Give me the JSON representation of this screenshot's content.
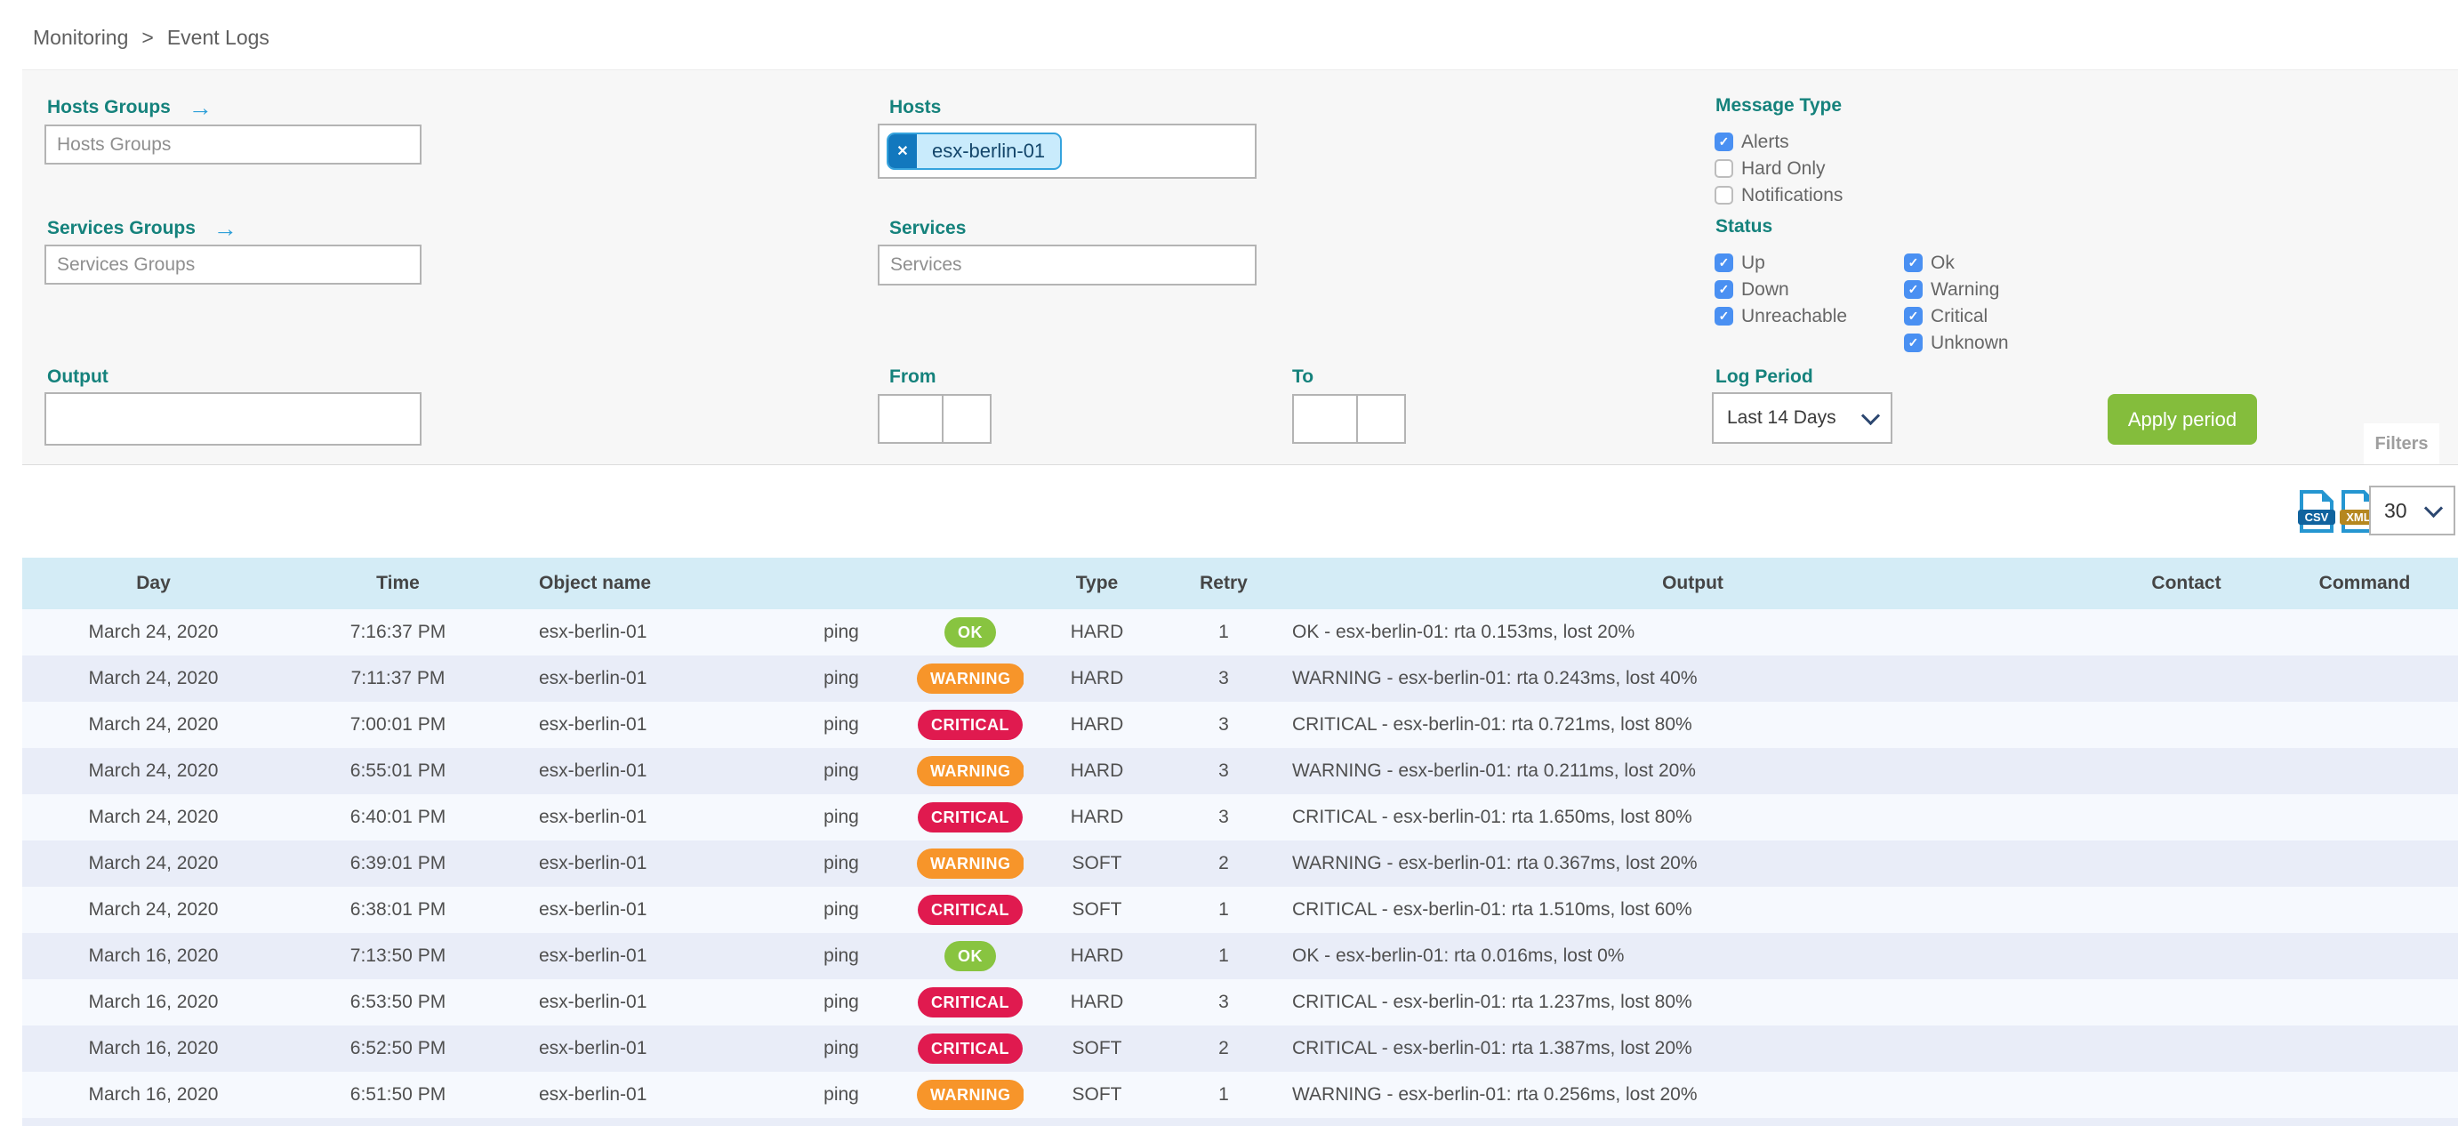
{
  "breadcrumb": {
    "section": "Monitoring",
    "separator": ">",
    "page": "Event Logs"
  },
  "filters": {
    "hosts_groups": {
      "label": "Hosts Groups",
      "placeholder": "Hosts Groups"
    },
    "services_groups": {
      "label": "Services Groups",
      "placeholder": "Services Groups"
    },
    "hosts": {
      "label": "Hosts",
      "chips": [
        "esx-berlin-01"
      ],
      "remove_icon": "✕"
    },
    "services": {
      "label": "Services",
      "placeholder": "Services"
    },
    "output": {
      "label": "Output",
      "value": ""
    },
    "from": {
      "label": "From",
      "date": "",
      "time": ""
    },
    "to": {
      "label": "To",
      "date": "",
      "time": ""
    },
    "message_type": {
      "label": "Message Type",
      "options": [
        {
          "label": "Alerts",
          "checked": true
        },
        {
          "label": "Hard Only",
          "checked": false
        },
        {
          "label": "Notifications",
          "checked": false
        }
      ]
    },
    "status": {
      "label": "Status",
      "col1": [
        {
          "label": "Up",
          "checked": true
        },
        {
          "label": "Down",
          "checked": true
        },
        {
          "label": "Unreachable",
          "checked": true
        }
      ],
      "col2": [
        {
          "label": "Ok",
          "checked": true
        },
        {
          "label": "Warning",
          "checked": true
        },
        {
          "label": "Critical",
          "checked": true
        },
        {
          "label": "Unknown",
          "checked": true
        }
      ]
    },
    "log_period": {
      "label": "Log Period",
      "selected": "Last 14 Days"
    },
    "apply_label": "Apply period",
    "filters_tab": "Filters"
  },
  "toolbar": {
    "csv_label": "CSV",
    "xml_label": "XML",
    "page_size": "30"
  },
  "colors": {
    "ok": "#88c440",
    "warning": "#f7952a",
    "critical": "#e01a4f",
    "accent_teal": "#15827c",
    "checkbox_blue": "#4a90f2",
    "apply_green": "#84bd3c"
  },
  "table": {
    "columns": [
      {
        "key": "day",
        "label": "Day"
      },
      {
        "key": "time",
        "label": "Time"
      },
      {
        "key": "object",
        "label": "Object name"
      },
      {
        "key": "service",
        "label": ""
      },
      {
        "key": "status",
        "label": ""
      },
      {
        "key": "type",
        "label": "Type"
      },
      {
        "key": "retry",
        "label": "Retry"
      },
      {
        "key": "output",
        "label": "Output"
      },
      {
        "key": "contact",
        "label": "Contact"
      },
      {
        "key": "command",
        "label": "Command"
      }
    ],
    "rows": [
      {
        "day": "March 24, 2020",
        "time": "7:16:37 PM",
        "object": "esx-berlin-01",
        "service": "ping",
        "status": "OK",
        "type": "HARD",
        "retry": "1",
        "output": "OK - esx-berlin-01: rta 0.153ms, lost 20%",
        "contact": "",
        "command": ""
      },
      {
        "day": "March 24, 2020",
        "time": "7:11:37 PM",
        "object": "esx-berlin-01",
        "service": "ping",
        "status": "WARNING",
        "type": "HARD",
        "retry": "3",
        "output": "WARNING - esx-berlin-01: rta 0.243ms, lost 40%",
        "contact": "",
        "command": ""
      },
      {
        "day": "March 24, 2020",
        "time": "7:00:01 PM",
        "object": "esx-berlin-01",
        "service": "ping",
        "status": "CRITICAL",
        "type": "HARD",
        "retry": "3",
        "output": "CRITICAL - esx-berlin-01: rta 0.721ms, lost 80%",
        "contact": "",
        "command": ""
      },
      {
        "day": "March 24, 2020",
        "time": "6:55:01 PM",
        "object": "esx-berlin-01",
        "service": "ping",
        "status": "WARNING",
        "type": "HARD",
        "retry": "3",
        "output": "WARNING - esx-berlin-01: rta 0.211ms, lost 20%",
        "contact": "",
        "command": ""
      },
      {
        "day": "March 24, 2020",
        "time": "6:40:01 PM",
        "object": "esx-berlin-01",
        "service": "ping",
        "status": "CRITICAL",
        "type": "HARD",
        "retry": "3",
        "output": "CRITICAL - esx-berlin-01: rta 1.650ms, lost 80%",
        "contact": "",
        "command": ""
      },
      {
        "day": "March 24, 2020",
        "time": "6:39:01 PM",
        "object": "esx-berlin-01",
        "service": "ping",
        "status": "WARNING",
        "type": "SOFT",
        "retry": "2",
        "output": "WARNING - esx-berlin-01: rta 0.367ms, lost 20%",
        "contact": "",
        "command": ""
      },
      {
        "day": "March 24, 2020",
        "time": "6:38:01 PM",
        "object": "esx-berlin-01",
        "service": "ping",
        "status": "CRITICAL",
        "type": "SOFT",
        "retry": "1",
        "output": "CRITICAL - esx-berlin-01: rta 1.510ms, lost 60%",
        "contact": "",
        "command": ""
      },
      {
        "day": "March 16, 2020",
        "time": "7:13:50 PM",
        "object": "esx-berlin-01",
        "service": "ping",
        "status": "OK",
        "type": "HARD",
        "retry": "1",
        "output": "OK - esx-berlin-01: rta 0.016ms, lost 0%",
        "contact": "",
        "command": ""
      },
      {
        "day": "March 16, 2020",
        "time": "6:53:50 PM",
        "object": "esx-berlin-01",
        "service": "ping",
        "status": "CRITICAL",
        "type": "HARD",
        "retry": "3",
        "output": "CRITICAL - esx-berlin-01: rta 1.237ms, lost 80%",
        "contact": "",
        "command": ""
      },
      {
        "day": "March 16, 2020",
        "time": "6:52:50 PM",
        "object": "esx-berlin-01",
        "service": "ping",
        "status": "CRITICAL",
        "type": "SOFT",
        "retry": "2",
        "output": "CRITICAL - esx-berlin-01: rta 1.387ms, lost 20%",
        "contact": "",
        "command": ""
      },
      {
        "day": "March 16, 2020",
        "time": "6:51:50 PM",
        "object": "esx-berlin-01",
        "service": "ping",
        "status": "WARNING",
        "type": "SOFT",
        "retry": "1",
        "output": "WARNING - esx-berlin-01: rta 0.256ms, lost 20%",
        "contact": "",
        "command": ""
      }
    ]
  }
}
